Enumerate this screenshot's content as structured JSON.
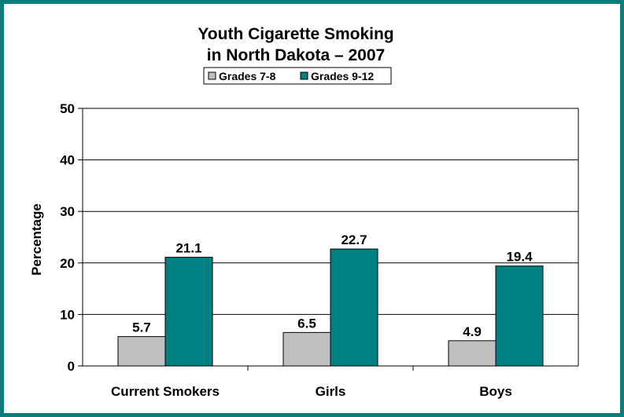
{
  "chart_data": {
    "type": "bar",
    "title": [
      "Youth Cigarette Smoking",
      "in North Dakota – 2007"
    ],
    "ylabel": "Percentage",
    "xlabel": "",
    "categories": [
      "Current Smokers",
      "Girls",
      "Boys"
    ],
    "series": [
      {
        "name": "Grades 7-8",
        "values": [
          5.7,
          6.5,
          4.9
        ],
        "color": "#c0c0c0"
      },
      {
        "name": "Grades 9-12",
        "values": [
          21.1,
          22.7,
          19.4
        ],
        "color": "#008080"
      }
    ],
    "ylim": [
      0,
      50
    ],
    "yticks": [
      0,
      10,
      20,
      30,
      40,
      50
    ],
    "grid": true,
    "legend": "top-center",
    "data_labels": true
  },
  "colors": {
    "border": "#0e7c7b",
    "background": "#ffffff",
    "grid": "#000000"
  }
}
